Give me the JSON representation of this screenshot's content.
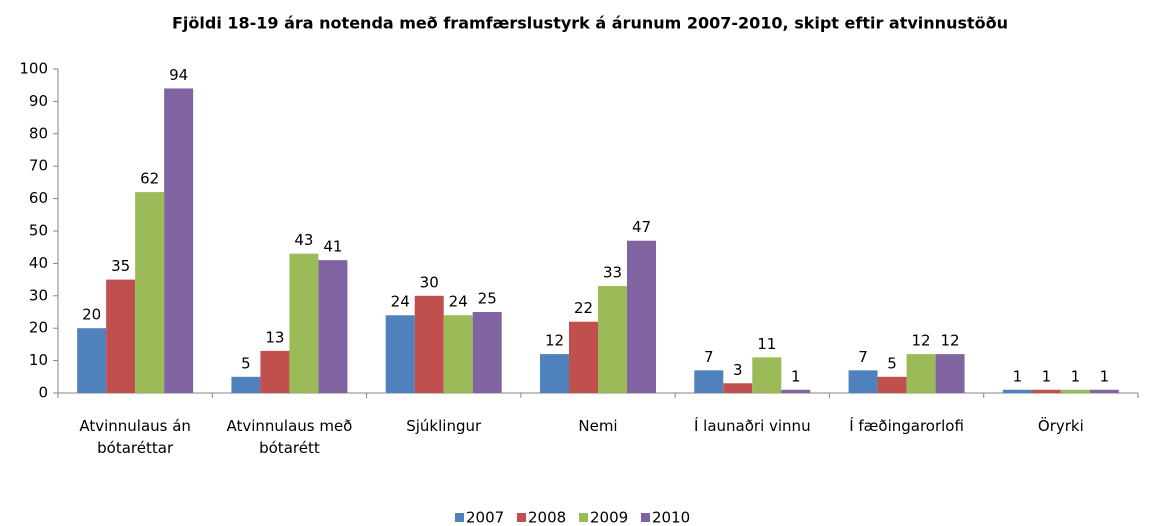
{
  "chart_data": {
    "type": "bar",
    "title": "Fjöldi 18-19 ára notenda með framfærslustyrk á árunum 2007-2010, skipt eftir atvinnustöðu",
    "categories": [
      "Atvinnulaus án bótaréttar",
      "Atvinnulaus með bótarétt",
      "Sjúklingur",
      "Nemi",
      "Í launaðri vinnu",
      "Í fæðingarorlofi",
      "Öryrki"
    ],
    "series": [
      {
        "name": "2007",
        "color": "#4f81bd",
        "values": [
          20,
          5,
          24,
          12,
          7,
          7,
          1
        ]
      },
      {
        "name": "2008",
        "color": "#c0504d",
        "values": [
          35,
          13,
          30,
          22,
          3,
          5,
          1
        ]
      },
      {
        "name": "2009",
        "color": "#9bbb59",
        "values": [
          62,
          43,
          24,
          33,
          11,
          12,
          1
        ]
      },
      {
        "name": "2010",
        "color": "#8064a2",
        "values": [
          94,
          41,
          25,
          47,
          1,
          12,
          1
        ]
      }
    ],
    "ylim": [
      0,
      100
    ],
    "yticks": [
      0,
      10,
      20,
      30,
      40,
      50,
      60,
      70,
      80,
      90,
      100
    ],
    "grid": false,
    "legend": "bottom"
  }
}
